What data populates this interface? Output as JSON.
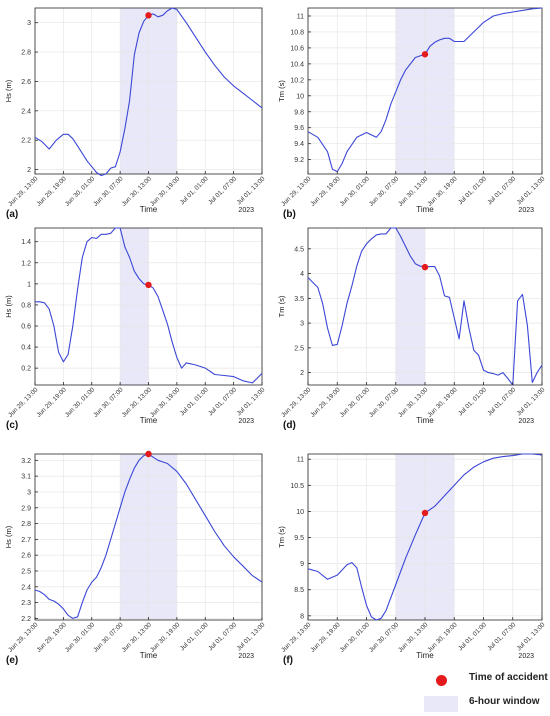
{
  "figure_colors": {
    "line": "#3b47d6",
    "marker": "#e41a1c",
    "window": "#e8e8f8",
    "axis": "#262626",
    "grid": "#e6e6e6"
  },
  "legend": {
    "accident_label": "Time of accident",
    "window_label": "6-hour window"
  },
  "chart_data": [
    {
      "panel": "(a)",
      "type": "line",
      "xlabel": "Time",
      "ylabel": "Hs (m)",
      "year_label": "2023",
      "x_ticks": [
        "Jun 29, 13:00",
        "Jun 29, 19:00",
        "Jun 30, 01:00",
        "Jun 30, 07:00",
        "Jun 30, 13:00",
        "Jun 30, 19:00",
        "Jul 01, 01:00",
        "Jul 01, 07:00",
        "Jul 01, 13:00"
      ],
      "xlim": [
        0,
        48
      ],
      "ylim": [
        1.97,
        3.1
      ],
      "y_ticks": [
        2,
        2.2,
        2.4,
        2.6,
        2.8,
        3
      ],
      "y_tick_labels": [
        "2",
        "2.2",
        "2.4",
        "2.6",
        "2.8",
        "3"
      ],
      "window": [
        18,
        30
      ],
      "accident": {
        "x": 24,
        "y": 3.05
      },
      "x": [
        0,
        1.5,
        3,
        4.5,
        6,
        7,
        8,
        9,
        10,
        11,
        12,
        13,
        14,
        15,
        16,
        17,
        18,
        19,
        20,
        21,
        22,
        23,
        24,
        25,
        26,
        27,
        28,
        29,
        30,
        32,
        34,
        36,
        38,
        40,
        42,
        44,
        46,
        48
      ],
      "y": [
        2.22,
        2.19,
        2.14,
        2.2,
        2.24,
        2.24,
        2.21,
        2.16,
        2.11,
        2.06,
        2.02,
        1.98,
        1.96,
        1.97,
        2.01,
        2.02,
        2.12,
        2.28,
        2.47,
        2.78,
        2.93,
        3.01,
        3.05,
        3.06,
        3.04,
        3.05,
        3.08,
        3.1,
        3.09,
        3.0,
        2.9,
        2.8,
        2.71,
        2.63,
        2.57,
        2.52,
        2.47,
        2.42
      ]
    },
    {
      "panel": "(b)",
      "type": "line",
      "xlabel": "Time",
      "ylabel": "Tm (s)",
      "year_label": "2023",
      "x_ticks": [
        "Jun 29, 13:00",
        "Jun 29, 19:00",
        "Jun 30, 01:00",
        "Jun 30, 07:00",
        "Jun 30, 13:00",
        "Jun 30, 19:00",
        "Jul 01, 01:00",
        "Jul 01, 07:00",
        "Jul 01, 13:00"
      ],
      "xlim": [
        0,
        48
      ],
      "ylim": [
        9.02,
        11.1
      ],
      "y_ticks": [
        9.2,
        9.4,
        9.6,
        9.8,
        10,
        10.2,
        10.4,
        10.6,
        10.8,
        11
      ],
      "y_tick_labels": [
        "9.2",
        "9.4",
        "9.6",
        "9.8",
        "10",
        "10.2",
        "10.4",
        "10.6",
        "10.8",
        "11"
      ],
      "window": [
        18,
        30
      ],
      "accident": {
        "x": 24,
        "y": 10.52
      },
      "x": [
        0,
        2,
        4,
        5,
        6,
        7,
        8,
        10,
        12,
        14,
        15,
        16,
        17,
        18,
        19,
        20,
        21,
        22,
        23,
        24,
        25,
        26,
        27,
        28,
        29,
        30,
        32,
        34,
        36,
        38,
        40,
        42,
        44,
        46,
        48
      ],
      "y": [
        9.55,
        9.48,
        9.3,
        9.08,
        9.05,
        9.15,
        9.3,
        9.48,
        9.54,
        9.48,
        9.55,
        9.7,
        9.9,
        10.05,
        10.2,
        10.32,
        10.4,
        10.48,
        10.5,
        10.52,
        10.62,
        10.67,
        10.7,
        10.72,
        10.72,
        10.68,
        10.68,
        10.8,
        10.92,
        11.0,
        11.03,
        11.05,
        11.07,
        11.09,
        11.1
      ]
    },
    {
      "panel": "(c)",
      "type": "line",
      "xlabel": "Time",
      "ylabel": "Hs (m)",
      "year_label": "2023",
      "x_ticks": [
        "Jun 29, 13:00",
        "Jun 29, 19:00",
        "Jun 30, 01:00",
        "Jun 30, 07:00",
        "Jun 30, 13:00",
        "Jun 30, 19:00",
        "Jul 01, 01:00",
        "Jul 01, 07:00",
        "Jul 01, 13:00"
      ],
      "xlim": [
        0,
        48
      ],
      "ylim": [
        0.04,
        1.53
      ],
      "y_ticks": [
        0.2,
        0.4,
        0.6,
        0.8,
        1,
        1.2,
        1.4
      ],
      "y_tick_labels": [
        "0.2",
        "0.4",
        "0.6",
        "0.8",
        "1",
        "1.2",
        "1.4"
      ],
      "window": [
        18,
        24
      ],
      "accident": {
        "x": 24,
        "y": 0.99
      },
      "x": [
        0,
        1,
        2,
        3,
        4,
        5,
        6,
        7,
        8,
        9,
        10,
        11,
        12,
        13,
        14,
        15,
        16,
        17,
        18,
        19,
        20,
        21,
        22,
        23,
        24,
        25,
        26,
        27,
        28,
        29,
        30,
        31,
        32,
        33,
        34,
        36,
        38,
        40,
        42,
        44,
        46,
        48
      ],
      "y": [
        0.83,
        0.83,
        0.82,
        0.76,
        0.6,
        0.35,
        0.26,
        0.33,
        0.6,
        0.95,
        1.25,
        1.4,
        1.44,
        1.43,
        1.47,
        1.47,
        1.48,
        1.53,
        1.53,
        1.35,
        1.25,
        1.12,
        1.05,
        1.0,
        0.99,
        0.96,
        0.88,
        0.75,
        0.62,
        0.45,
        0.3,
        0.2,
        0.25,
        0.24,
        0.23,
        0.2,
        0.14,
        0.13,
        0.12,
        0.08,
        0.06,
        0.15
      ]
    },
    {
      "panel": "(d)",
      "type": "line",
      "xlabel": "Time",
      "ylabel": "Tm (s)",
      "year_label": "2023",
      "x_ticks": [
        "Jun 29, 13:00",
        "Jun 29, 19:00",
        "Jun 30, 01:00",
        "Jun 30, 07:00",
        "Jun 30, 13:00",
        "Jun 30, 19:00",
        "Jul 01, 01:00",
        "Jul 01, 07:00",
        "Jul 01, 13:00"
      ],
      "xlim": [
        0,
        48
      ],
      "ylim": [
        1.75,
        4.92
      ],
      "y_ticks": [
        2,
        2.5,
        3,
        3.5,
        4,
        4.5
      ],
      "y_tick_labels": [
        "2",
        "2.5",
        "3",
        "3.5",
        "4",
        "4.5"
      ],
      "window": [
        18,
        24
      ],
      "accident": {
        "x": 24,
        "y": 4.13
      },
      "x": [
        0,
        1,
        2,
        3,
        4,
        5,
        6,
        7,
        8,
        9,
        10,
        11,
        12,
        13,
        14,
        15,
        16,
        17,
        18,
        19,
        20,
        21,
        22,
        23,
        24,
        25,
        26,
        27,
        28,
        29,
        30,
        31,
        32,
        33,
        34,
        35,
        36,
        37,
        38,
        39,
        40,
        41,
        42,
        43,
        44,
        45,
        46,
        47,
        48
      ],
      "y": [
        3.92,
        3.82,
        3.72,
        3.4,
        2.9,
        2.55,
        2.57,
        2.95,
        3.4,
        3.75,
        4.15,
        4.45,
        4.6,
        4.7,
        4.78,
        4.8,
        4.8,
        4.92,
        4.92,
        4.75,
        4.55,
        4.35,
        4.2,
        4.15,
        4.13,
        4.14,
        4.14,
        3.95,
        3.55,
        3.52,
        3.1,
        2.68,
        3.45,
        2.9,
        2.45,
        2.35,
        2.05,
        2.0,
        1.98,
        1.95,
        2.0,
        1.88,
        1.75,
        3.45,
        3.58,
        2.95,
        1.8,
        2.0,
        2.15
      ]
    },
    {
      "panel": "(e)",
      "type": "line",
      "xlabel": "Time",
      "ylabel": "Hs (m)",
      "year_label": "2023",
      "x_ticks": [
        "Jun 29, 13:00",
        "Jun 29, 19:00",
        "Jun 30, 01:00",
        "Jun 30, 07:00",
        "Jun 30, 13:00",
        "Jun 30, 19:00",
        "Jul 01, 01:00",
        "Jul 01, 07:00",
        "Jul 01, 13:00"
      ],
      "xlim": [
        0,
        48
      ],
      "ylim": [
        2.19,
        3.24
      ],
      "y_ticks": [
        2.2,
        2.3,
        2.4,
        2.5,
        2.6,
        2.7,
        2.8,
        2.9,
        3,
        3.1,
        3.2
      ],
      "y_tick_labels": [
        "2.2",
        "2.3",
        "2.4",
        "2.5",
        "2.6",
        "2.7",
        "2.8",
        "2.9",
        "3",
        "3.1",
        "3.2"
      ],
      "window": [
        18,
        30
      ],
      "accident": {
        "x": 24,
        "y": 3.24
      },
      "x": [
        0,
        1,
        2,
        3,
        4,
        5,
        6,
        7,
        8,
        9,
        10,
        11,
        12,
        13,
        14,
        15,
        16,
        17,
        18,
        19,
        20,
        21,
        22,
        23,
        24,
        25,
        26,
        27,
        28,
        30,
        32,
        34,
        36,
        38,
        40,
        42,
        44,
        46,
        48
      ],
      "y": [
        2.38,
        2.37,
        2.35,
        2.32,
        2.31,
        2.29,
        2.26,
        2.22,
        2.2,
        2.21,
        2.3,
        2.38,
        2.43,
        2.46,
        2.52,
        2.6,
        2.7,
        2.8,
        2.9,
        3.0,
        3.08,
        3.15,
        3.2,
        3.23,
        3.24,
        3.22,
        3.2,
        3.19,
        3.18,
        3.13,
        3.05,
        2.95,
        2.85,
        2.75,
        2.66,
        2.59,
        2.53,
        2.47,
        2.43
      ]
    },
    {
      "panel": "(f)",
      "type": "line",
      "xlabel": "Time",
      "ylabel": "Tm (s)",
      "year_label": "2023",
      "x_ticks": [
        "Jun 29, 13:00",
        "Jun 29, 19:00",
        "Jun 30, 01:00",
        "Jun 30, 07:00",
        "Jun 30, 13:00",
        "Jun 30, 19:00",
        "Jul 01, 01:00",
        "Jul 01, 07:00",
        "Jul 01, 13:00"
      ],
      "xlim": [
        0,
        48
      ],
      "ylim": [
        7.92,
        11.1
      ],
      "y_ticks": [
        8,
        8.5,
        9,
        9.5,
        10,
        10.5,
        11
      ],
      "y_tick_labels": [
        "8",
        "8.5",
        "9",
        "9.5",
        "10",
        "10.5",
        "11"
      ],
      "window": [
        18,
        30
      ],
      "accident": {
        "x": 24,
        "y": 9.97
      },
      "x": [
        0,
        2,
        4,
        6,
        8,
        9,
        10,
        11,
        12,
        13,
        14,
        15,
        16,
        18,
        20,
        22,
        24,
        26,
        28,
        30,
        32,
        34,
        36,
        38,
        40,
        42,
        44,
        46,
        48
      ],
      "y": [
        8.9,
        8.85,
        8.7,
        8.78,
        8.98,
        9.02,
        8.92,
        8.55,
        8.2,
        7.98,
        7.92,
        7.95,
        8.1,
        8.6,
        9.1,
        9.55,
        9.97,
        10.1,
        10.3,
        10.5,
        10.7,
        10.85,
        10.95,
        11.02,
        11.05,
        11.07,
        11.1,
        11.1,
        11.08
      ]
    }
  ]
}
